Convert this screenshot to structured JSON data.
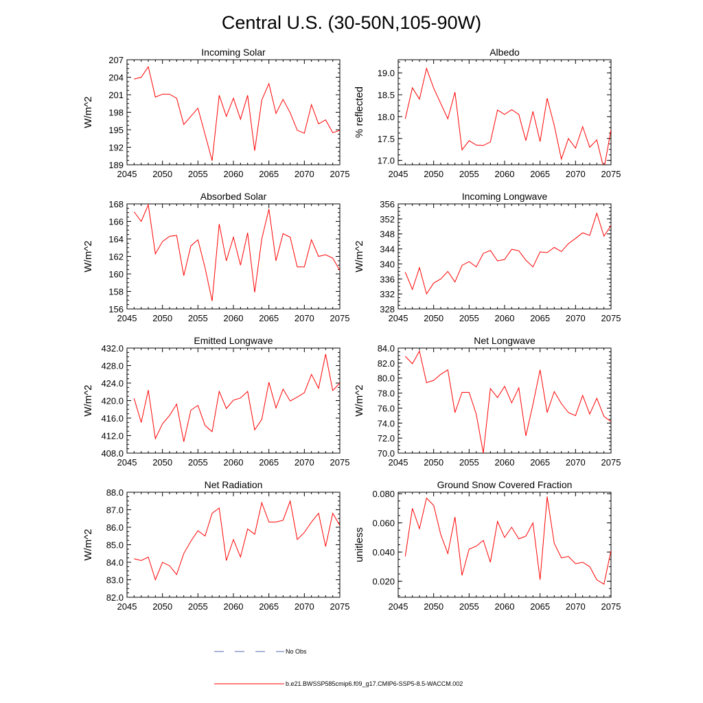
{
  "figure_title": "Central U.S. (30-50N,105-90W)",
  "legend": {
    "obs_label": "No Obs",
    "model_label": "b.e21.BWSSP585cmip6.f09_g17.CMIP6-SSP5-8.5-WACCM.002",
    "obs_color": "#5a6bb0",
    "model_color": "#ff0000"
  },
  "chart_data": [
    {
      "type": "line",
      "title": "Incoming Solar",
      "xlabel": "",
      "ylabel": "W/m^2",
      "xlim": [
        2045,
        2075
      ],
      "ylim": [
        189,
        207
      ],
      "xticks": [
        "2045",
        "2050",
        "2055",
        "2060",
        "2065",
        "2070",
        "2075"
      ],
      "yticks": [
        "189",
        "192",
        "195",
        "198",
        "201",
        "204",
        "207"
      ],
      "x": [
        2046,
        2047,
        2048,
        2049,
        2050,
        2051,
        2052,
        2053,
        2054,
        2055,
        2056,
        2057,
        2058,
        2059,
        2060,
        2061,
        2062,
        2063,
        2064,
        2065,
        2066,
        2067,
        2068,
        2069,
        2070,
        2071,
        2072,
        2073,
        2074,
        2075
      ],
      "series": [
        {
          "name": "b.e21.BWSSP585cmip6.f09_g17.CMIP6-SSP5-8.5-WACCM.002",
          "values": [
            203.7,
            204.0,
            205.8,
            200.6,
            201.1,
            201.1,
            200.4,
            195.9,
            197.3,
            198.7,
            194.2,
            189.7,
            200.9,
            197.3,
            200.4,
            196.8,
            200.9,
            191.4,
            200.1,
            202.9,
            197.8,
            200.2,
            197.9,
            194.9,
            194.4,
            199.3,
            196.0,
            196.7,
            194.5,
            194.9
          ]
        }
      ]
    },
    {
      "type": "line",
      "title": "Albedo",
      "xlabel": "",
      "ylabel": "% reflected",
      "xlim": [
        2045,
        2075
      ],
      "ylim": [
        16.9,
        19.3
      ],
      "xticks": [
        "2045",
        "2050",
        "2055",
        "2060",
        "2065",
        "2070",
        "2075"
      ],
      "yticks": [
        "17.0",
        "17.5",
        "18.0",
        "18.5",
        "19.0"
      ],
      "x": [
        2046,
        2047,
        2048,
        2049,
        2050,
        2051,
        2052,
        2053,
        2054,
        2055,
        2056,
        2057,
        2058,
        2059,
        2060,
        2061,
        2062,
        2063,
        2064,
        2065,
        2066,
        2067,
        2068,
        2069,
        2070,
        2071,
        2072,
        2073,
        2074,
        2075
      ],
      "series": [
        {
          "name": "b.e21.BWSSP585cmip6.f09_g17.CMIP6-SSP5-8.5-WACCM.002",
          "values": [
            17.95,
            18.66,
            18.4,
            19.1,
            18.65,
            18.3,
            17.95,
            18.56,
            17.24,
            17.45,
            17.35,
            17.34,
            17.42,
            18.15,
            18.05,
            18.16,
            18.05,
            17.45,
            18.12,
            17.43,
            18.42,
            17.8,
            17.03,
            17.5,
            17.28,
            17.77,
            17.3,
            17.47,
            16.8,
            17.7
          ]
        }
      ]
    },
    {
      "type": "line",
      "title": "Absorbed Solar",
      "xlabel": "",
      "ylabel": "W/m^2",
      "xlim": [
        2045,
        2075
      ],
      "ylim": [
        156,
        168
      ],
      "xticks": [
        "2045",
        "2050",
        "2055",
        "2060",
        "2065",
        "2070",
        "2075"
      ],
      "yticks": [
        "156",
        "158",
        "160",
        "162",
        "164",
        "166",
        "168"
      ],
      "x": [
        2046,
        2047,
        2048,
        2049,
        2050,
        2051,
        2052,
        2053,
        2054,
        2055,
        2056,
        2057,
        2058,
        2059,
        2060,
        2061,
        2062,
        2063,
        2064,
        2065,
        2066,
        2067,
        2068,
        2069,
        2070,
        2071,
        2072,
        2073,
        2074,
        2075
      ],
      "series": [
        {
          "name": "b.e21.BWSSP585cmip6.f09_g17.CMIP6-SSP5-8.5-WACCM.002",
          "values": [
            167.1,
            166.0,
            167.9,
            162.3,
            163.7,
            164.3,
            164.4,
            159.8,
            163.2,
            163.9,
            160.7,
            156.9,
            165.7,
            161.5,
            164.2,
            161.0,
            164.7,
            157.9,
            164.0,
            167.4,
            161.5,
            164.6,
            164.2,
            160.8,
            160.8,
            163.9,
            162.0,
            162.2,
            161.8,
            160.4
          ]
        }
      ]
    },
    {
      "type": "line",
      "title": "Incoming Longwave",
      "xlabel": "",
      "ylabel": "W/m^2",
      "xlim": [
        2045,
        2075
      ],
      "ylim": [
        328,
        356
      ],
      "xticks": [
        "2045",
        "2050",
        "2055",
        "2060",
        "2065",
        "2070",
        "2075"
      ],
      "yticks": [
        "328",
        "332",
        "336",
        "340",
        "344",
        "348",
        "352",
        "356"
      ],
      "x": [
        2046,
        2047,
        2048,
        2049,
        2050,
        2051,
        2052,
        2053,
        2054,
        2055,
        2056,
        2057,
        2058,
        2059,
        2060,
        2061,
        2062,
        2063,
        2064,
        2065,
        2066,
        2067,
        2068,
        2069,
        2070,
        2071,
        2072,
        2073,
        2074,
        2075
      ],
      "series": [
        {
          "name": "b.e21.BWSSP585cmip6.f09_g17.CMIP6-SSP5-8.5-WACCM.002",
          "values": [
            337.8,
            333.2,
            339.0,
            332.0,
            334.9,
            336.0,
            338.0,
            335.2,
            339.6,
            340.6,
            339.2,
            342.8,
            343.6,
            340.8,
            341.2,
            343.9,
            343.5,
            341.0,
            339.2,
            343.2,
            343.0,
            344.4,
            343.3,
            345.4,
            346.8,
            348.3,
            347.6,
            353.5,
            347.4,
            350.2
          ]
        }
      ]
    },
    {
      "type": "line",
      "title": "Emitted Longwave",
      "xlabel": "",
      "ylabel": "W/m^2",
      "xlim": [
        2045,
        2075
      ],
      "ylim": [
        408,
        432
      ],
      "xticks": [
        "2045",
        "2050",
        "2055",
        "2060",
        "2065",
        "2070",
        "2075"
      ],
      "yticks": [
        "408.0",
        "412.0",
        "416.0",
        "420.0",
        "424.0",
        "428.0",
        "432.0"
      ],
      "x": [
        2046,
        2047,
        2048,
        2049,
        2050,
        2051,
        2052,
        2053,
        2054,
        2055,
        2056,
        2057,
        2058,
        2059,
        2060,
        2061,
        2062,
        2063,
        2064,
        2065,
        2066,
        2067,
        2068,
        2069,
        2070,
        2071,
        2072,
        2073,
        2074,
        2075
      ],
      "series": [
        {
          "name": "b.e21.BWSSP585cmip6.f09_g17.CMIP6-SSP5-8.5-WACCM.002",
          "values": [
            420.5,
            415.0,
            422.4,
            411.3,
            414.7,
            416.6,
            419.2,
            410.6,
            417.8,
            418.9,
            414.3,
            412.9,
            422.1,
            418.2,
            420.1,
            420.6,
            422.1,
            413.3,
            415.7,
            424.2,
            418.3,
            422.6,
            419.9,
            420.8,
            421.8,
            426.0,
            422.8,
            430.6,
            422.3,
            424.0
          ]
        }
      ]
    },
    {
      "type": "line",
      "title": "Net Longwave",
      "xlabel": "",
      "ylabel": "W/m^2",
      "xlim": [
        2045,
        2075
      ],
      "ylim": [
        70,
        84
      ],
      "xticks": [
        "2045",
        "2050",
        "2055",
        "2060",
        "2065",
        "2070",
        "2075"
      ],
      "yticks": [
        "70.0",
        "72.0",
        "74.0",
        "76.0",
        "78.0",
        "80.0",
        "82.0",
        "84.0"
      ],
      "x": [
        2046,
        2047,
        2048,
        2049,
        2050,
        2051,
        2052,
        2053,
        2054,
        2055,
        2056,
        2057,
        2058,
        2059,
        2060,
        2061,
        2062,
        2063,
        2064,
        2065,
        2066,
        2067,
        2068,
        2069,
        2070,
        2071,
        2072,
        2073,
        2074,
        2075
      ],
      "series": [
        {
          "name": "b.e21.BWSSP585cmip6.f09_g17.CMIP6-SSP5-8.5-WACCM.002",
          "values": [
            82.9,
            81.9,
            83.6,
            79.4,
            79.7,
            80.5,
            81.1,
            75.4,
            78.1,
            78.1,
            75.2,
            70.0,
            78.6,
            77.4,
            78.9,
            76.7,
            78.7,
            72.3,
            76.5,
            81.1,
            75.4,
            78.2,
            76.6,
            75.4,
            75.0,
            77.7,
            75.2,
            77.3,
            74.9,
            74.2
          ]
        }
      ]
    },
    {
      "type": "line",
      "title": "Net Radiation",
      "xlabel": "",
      "ylabel": "W/m^2",
      "xlim": [
        2045,
        2075
      ],
      "ylim": [
        82,
        88
      ],
      "xticks": [
        "2045",
        "2050",
        "2055",
        "2060",
        "2065",
        "2070",
        "2075"
      ],
      "yticks": [
        "82.0",
        "83.0",
        "84.0",
        "85.0",
        "86.0",
        "87.0",
        "88.0"
      ],
      "x": [
        2046,
        2047,
        2048,
        2049,
        2050,
        2051,
        2052,
        2053,
        2054,
        2055,
        2056,
        2057,
        2058,
        2059,
        2060,
        2061,
        2062,
        2063,
        2064,
        2065,
        2066,
        2067,
        2068,
        2069,
        2070,
        2071,
        2072,
        2073,
        2074,
        2075
      ],
      "series": [
        {
          "name": "b.e21.BWSSP585cmip6.f09_g17.CMIP6-SSP5-8.5-WACCM.002",
          "values": [
            84.2,
            84.1,
            84.3,
            83.0,
            84.0,
            83.8,
            83.3,
            84.5,
            85.2,
            85.8,
            85.5,
            86.8,
            87.1,
            84.1,
            85.3,
            84.3,
            85.9,
            85.6,
            87.4,
            86.3,
            86.3,
            86.4,
            87.5,
            85.3,
            85.7,
            86.3,
            86.8,
            84.9,
            86.8,
            86.1
          ]
        }
      ]
    },
    {
      "type": "line",
      "title": "Ground Snow Covered Fraction",
      "xlabel": "",
      "ylabel": "unitless",
      "xlim": [
        2045,
        2075
      ],
      "ylim": [
        0.009,
        0.081
      ],
      "xticks": [
        "2045",
        "2050",
        "2055",
        "2060",
        "2065",
        "2070",
        "2075"
      ],
      "yticks": [
        "0.020",
        "0.040",
        "0.060",
        "0.080"
      ],
      "x": [
        2046,
        2047,
        2048,
        2049,
        2050,
        2051,
        2052,
        2053,
        2054,
        2055,
        2056,
        2057,
        2058,
        2059,
        2060,
        2061,
        2062,
        2063,
        2064,
        2065,
        2066,
        2067,
        2068,
        2069,
        2070,
        2071,
        2072,
        2073,
        2074,
        2075
      ],
      "series": [
        {
          "name": "b.e21.BWSSP585cmip6.f09_g17.CMIP6-SSP5-8.5-WACCM.002",
          "values": [
            0.037,
            0.07,
            0.056,
            0.077,
            0.072,
            0.052,
            0.039,
            0.064,
            0.024,
            0.042,
            0.044,
            0.048,
            0.033,
            0.061,
            0.05,
            0.057,
            0.049,
            0.051,
            0.06,
            0.021,
            0.078,
            0.046,
            0.036,
            0.037,
            0.032,
            0.033,
            0.03,
            0.021,
            0.018,
            0.041
          ]
        }
      ]
    }
  ]
}
